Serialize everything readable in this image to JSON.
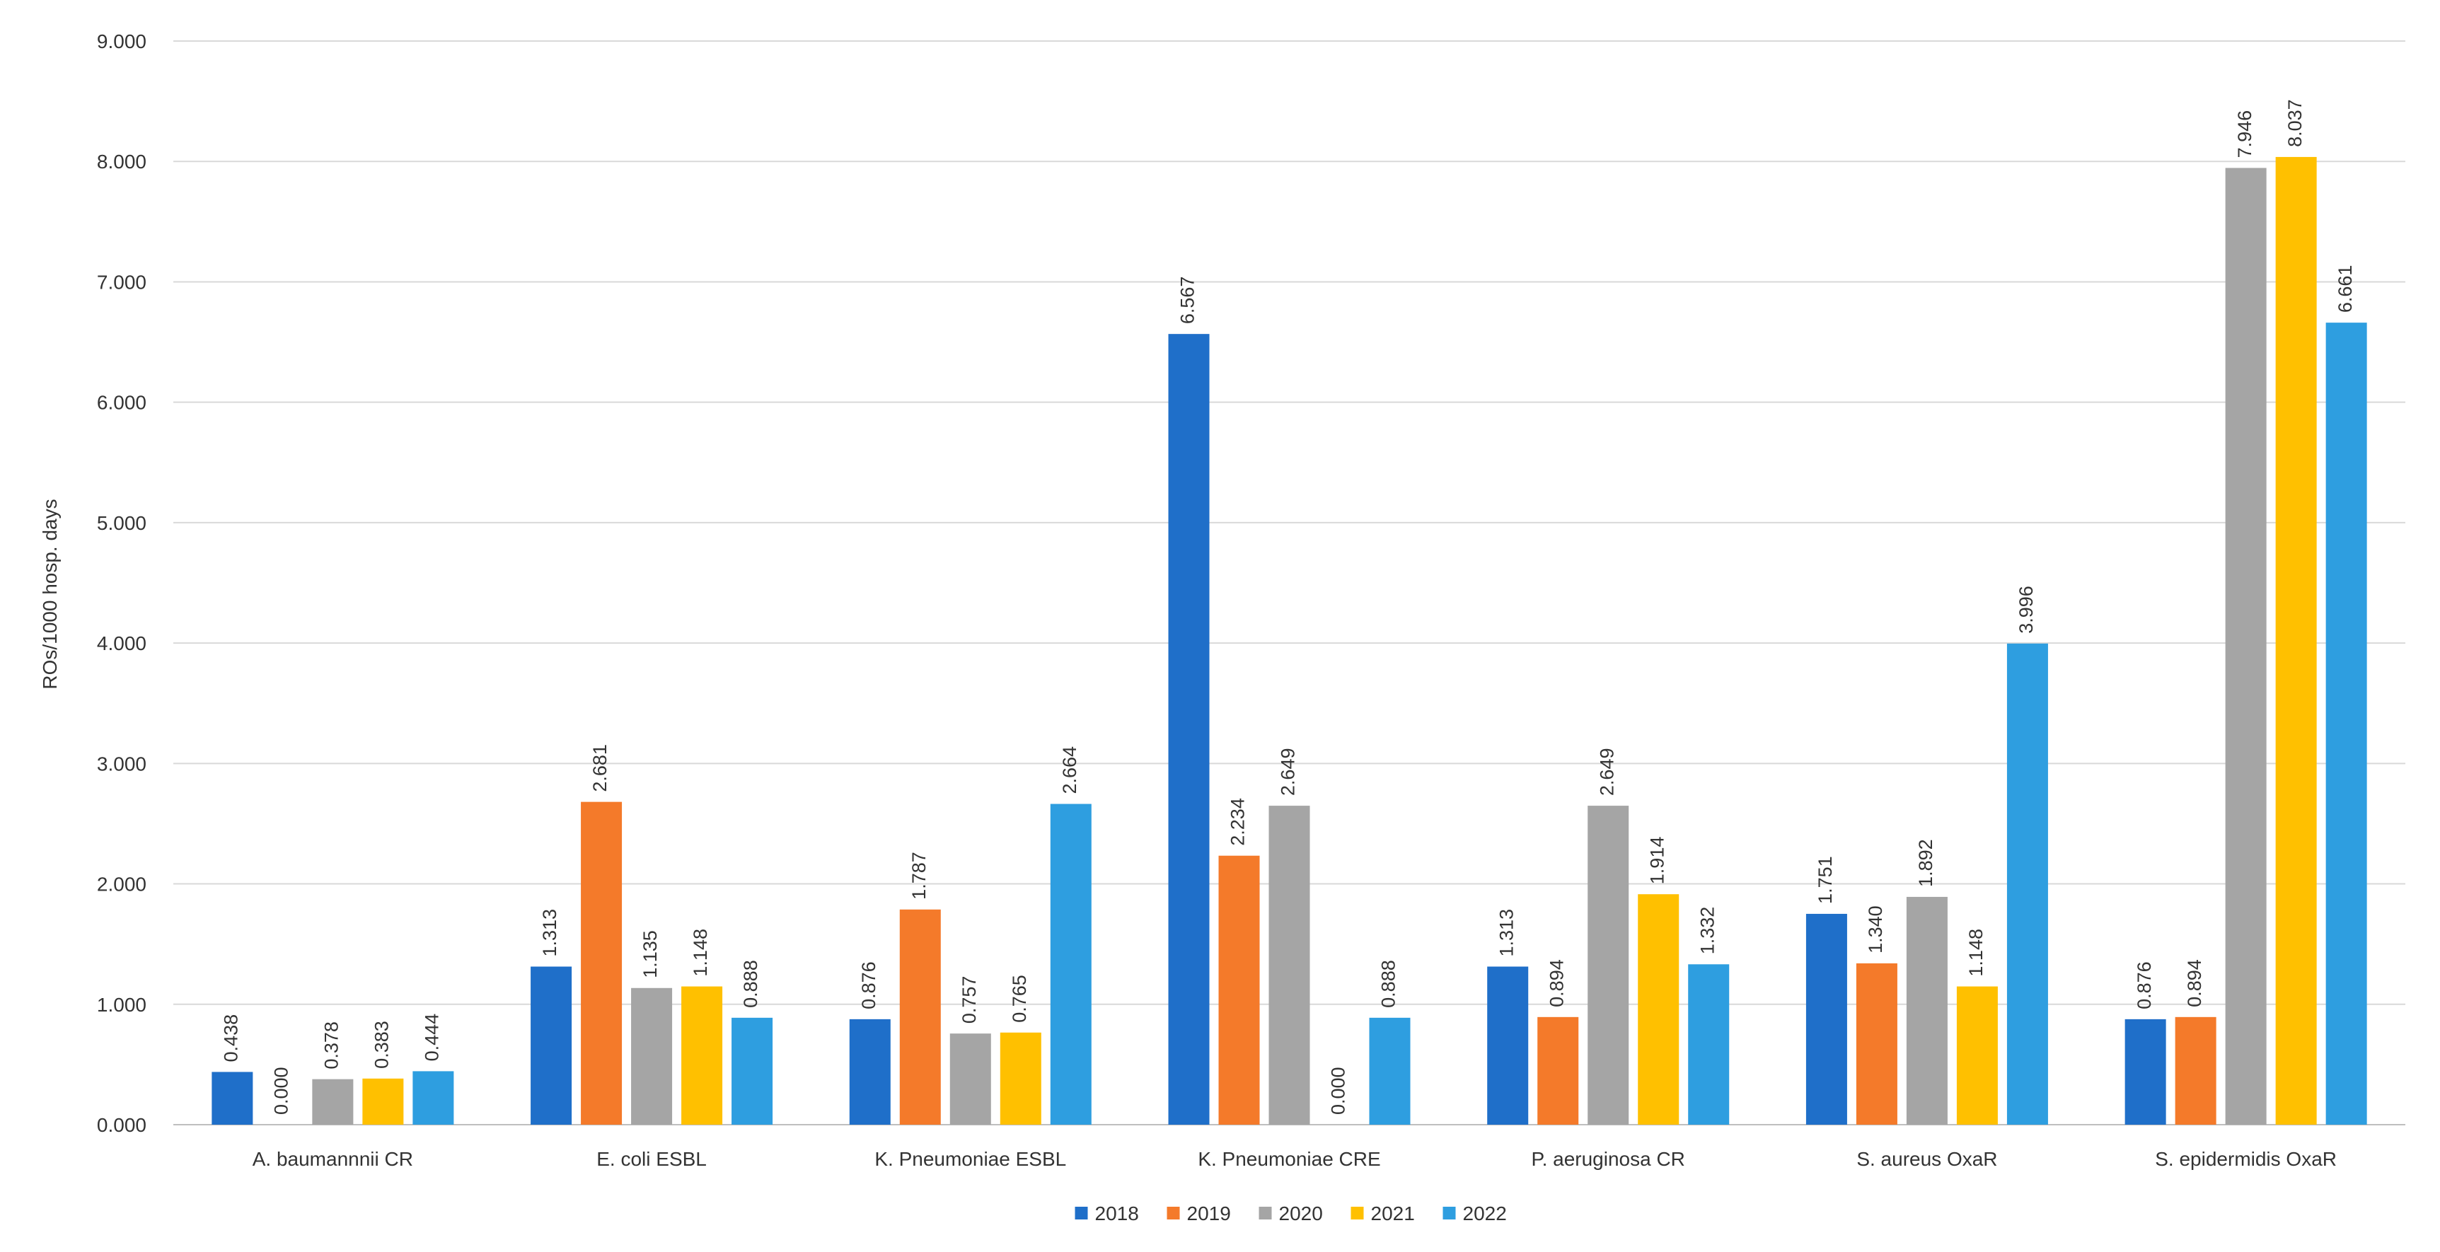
{
  "chart_data": {
    "type": "bar",
    "title": "",
    "xlabel": "",
    "ylabel": "ROs/1000 hosp. days",
    "ylim": [
      0,
      9
    ],
    "yticks": [
      "0.000",
      "1.000",
      "2.000",
      "3.000",
      "4.000",
      "5.000",
      "6.000",
      "7.000",
      "8.000",
      "9.000"
    ],
    "grid": true,
    "legend_position": "bottom",
    "categories": [
      "A. baumannnii CR",
      "E. coli ESBL",
      "K. Pneumoniae ESBL",
      "K. Pneumoniae CRE",
      "P. aeruginosa CR",
      "S. aureus OxaR",
      "S. epidermidis OxaR"
    ],
    "series": [
      {
        "name": "2018",
        "color": "#1f6fc9",
        "values": [
          0.438,
          1.313,
          0.876,
          6.567,
          1.313,
          1.751,
          0.876
        ],
        "labels": [
          "0.438",
          "1.313",
          "0.876",
          "6.567",
          "1.313",
          "1.751",
          "0.876"
        ]
      },
      {
        "name": "2019",
        "color": "#f47a2a",
        "values": [
          0.0,
          2.681,
          1.787,
          2.234,
          0.894,
          1.34,
          0.894
        ],
        "labels": [
          "0.000",
          "2.681",
          "1.787",
          "2.234",
          "0.894",
          "1.340",
          "0.894"
        ]
      },
      {
        "name": "2020",
        "color": "#a5a5a5",
        "values": [
          0.378,
          1.135,
          0.757,
          2.649,
          2.649,
          1.892,
          7.946
        ],
        "labels": [
          "0.378",
          "1.135",
          "0.757",
          "2.649",
          "2.649",
          "1.892",
          "7.946"
        ]
      },
      {
        "name": "2021",
        "color": "#ffc000",
        "values": [
          0.383,
          1.148,
          0.765,
          0.0,
          1.914,
          1.148,
          8.037
        ],
        "labels": [
          "0.383",
          "1.148",
          "0.765",
          "0.000",
          "1.914",
          "1.148",
          "8.037"
        ]
      },
      {
        "name": "2022",
        "color": "#2e9ee0",
        "values": [
          0.444,
          0.888,
          2.664,
          0.888,
          1.332,
          3.996,
          6.661
        ],
        "labels": [
          "0.444",
          "0.888",
          "2.664",
          "0.888",
          "1.332",
          "3.996",
          "6.661"
        ]
      }
    ]
  }
}
